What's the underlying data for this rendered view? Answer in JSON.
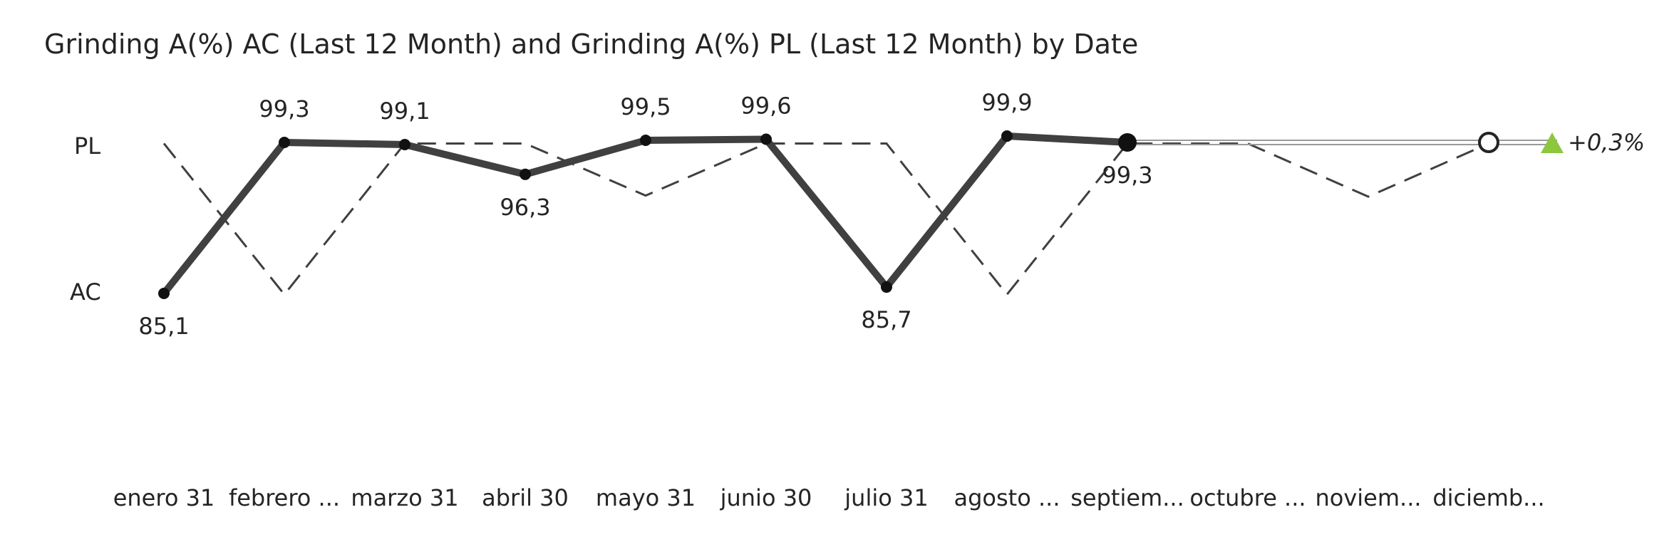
{
  "chart_data": {
    "type": "line",
    "title": "Grinding A(%) AC (Last 12 Month) and Grinding A(%) PL (Last 12 Month) by Date",
    "categories": [
      "enero 31",
      "febrero ...",
      "marzo 31",
      "abril 30",
      "mayo 31",
      "junio 30",
      "julio 31",
      "agosto ...",
      "septiem...",
      "octubre ...",
      "noviem...",
      "diciemb..."
    ],
    "row_labels": {
      "pl": "PL",
      "ac": "AC"
    },
    "series": [
      {
        "name": "AC",
        "values": [
          85.1,
          99.3,
          99.1,
          96.3,
          99.5,
          99.6,
          85.7,
          99.9,
          99.3,
          null,
          null,
          null
        ],
        "labels": [
          "85,1",
          "99,3",
          "99,1",
          "96,3",
          "99,5",
          "99,6",
          "85,7",
          "99,9",
          "99,3",
          "",
          "",
          ""
        ],
        "color": "#404040",
        "style": "solid"
      },
      {
        "name": "PL",
        "values": [
          99.2,
          85.0,
          99.2,
          99.2,
          94.3,
          99.2,
          99.2,
          85.0,
          99.2,
          99.2,
          94.2,
          99.2
        ],
        "color": "#404040",
        "style": "dashed"
      }
    ],
    "forecast": {
      "from_index": 8,
      "to_index": 11,
      "value": 99.3
    },
    "delta": {
      "label": "+0,3%",
      "color": "#8DC63F"
    },
    "ylim": [
      75,
      105
    ],
    "grid": false,
    "legend": "none"
  }
}
